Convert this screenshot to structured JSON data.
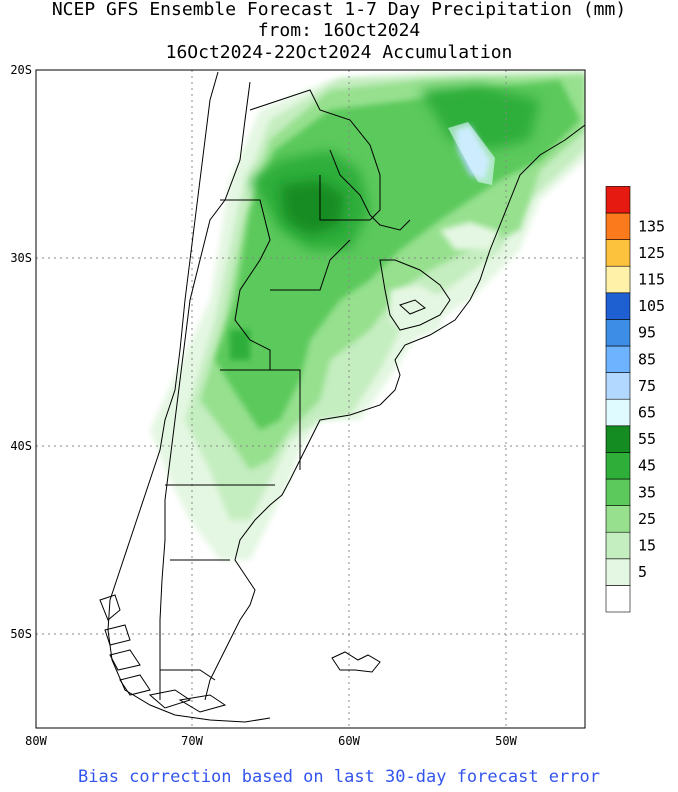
{
  "title": {
    "line1": "NCEP GFS Ensemble Forecast 1-7 Day Precipitation (mm)",
    "line2": "from: 16Oct2024",
    "line3": "16Oct2024-22Oct2024 Accumulation"
  },
  "axes": {
    "latitude_labels": [
      "20S",
      "30S",
      "40S",
      "50S"
    ],
    "longitude_labels": [
      "80W",
      "70W",
      "60W",
      "50W"
    ],
    "lat_range": [
      -55,
      -20
    ],
    "lon_range": [
      -80,
      -45
    ],
    "grid": "dotted"
  },
  "legend": {
    "placement": "right",
    "units": "mm",
    "levels": [
      {
        "label": "",
        "color": "#ffffff"
      },
      {
        "label": "5",
        "color": "#e4f7e2"
      },
      {
        "label": "15",
        "color": "#c4edc0"
      },
      {
        "label": "25",
        "color": "#96e08e"
      },
      {
        "label": "35",
        "color": "#5cc95c"
      },
      {
        "label": "45",
        "color": "#2fae3a"
      },
      {
        "label": "55",
        "color": "#148c22"
      },
      {
        "label": "65",
        "color": "#e0fbff"
      },
      {
        "label": "75",
        "color": "#b2d8ff"
      },
      {
        "label": "85",
        "color": "#6db3ff"
      },
      {
        "label": "95",
        "color": "#3d8ce6"
      },
      {
        "label": "105",
        "color": "#1e5fd2"
      },
      {
        "label": "115",
        "color": "#fff2a8"
      },
      {
        "label": "125",
        "color": "#fcc23e"
      },
      {
        "label": "135",
        "color": "#fb7b1c"
      },
      {
        "label": "",
        "color": "#e61a10"
      }
    ]
  },
  "footer": "Bias correction based on last 30-day forecast error"
}
